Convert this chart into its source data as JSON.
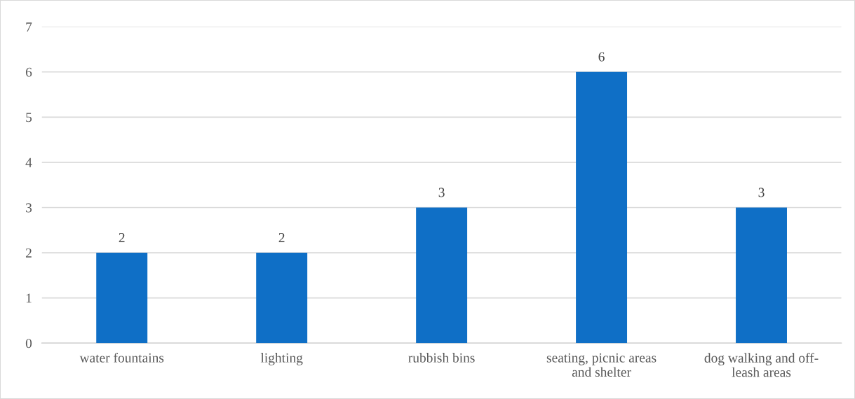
{
  "chart_data": {
    "type": "bar",
    "categories": [
      "water fountains",
      "lighting",
      "rubbish bins",
      "seating, picnic areas\nand shelter",
      "dog walking and off-\nleash areas"
    ],
    "values": [
      2,
      2,
      3,
      6,
      3
    ],
    "color": "#0f6fc6",
    "ylim": [
      0,
      7
    ],
    "yticks": [
      0,
      1,
      2,
      3,
      4,
      5,
      6,
      7
    ],
    "grid": "y",
    "data_labels": true
  }
}
